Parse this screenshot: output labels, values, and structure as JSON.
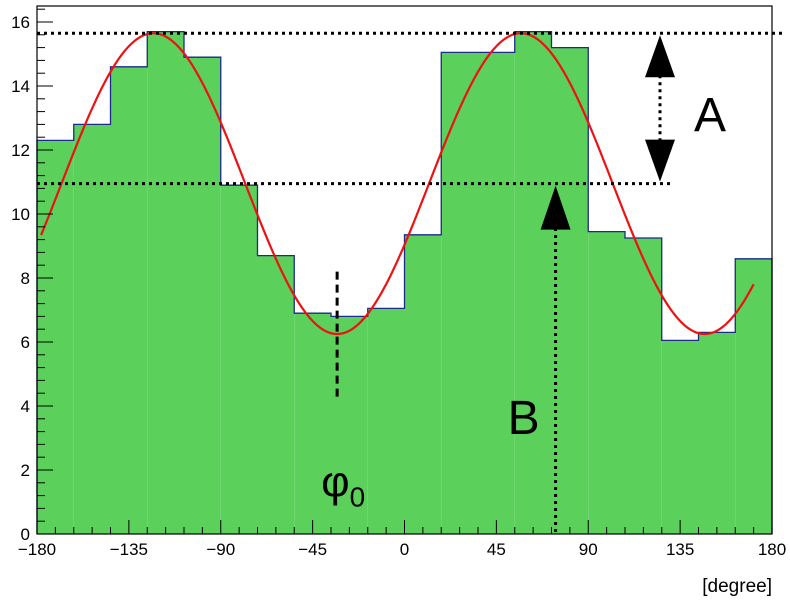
{
  "chart_data": {
    "type": "bar",
    "title": "",
    "xlabel": "[degree]",
    "ylabel": "",
    "xlim": [
      -180,
      180
    ],
    "ylim": [
      0,
      16.5
    ],
    "grid": false,
    "x_ticks": [
      -180,
      -135,
      -90,
      -45,
      0,
      45,
      90,
      135,
      180
    ],
    "x_tick_labels": [
      "−180",
      "−135",
      "−90",
      "−45",
      "0",
      "45",
      "90",
      "135",
      "180"
    ],
    "y_ticks": [
      0,
      2,
      4,
      6,
      8,
      10,
      12,
      14,
      16
    ],
    "y_tick_labels": [
      "0",
      "2",
      "4",
      "6",
      "8",
      "10",
      "12",
      "14",
      "16"
    ],
    "histogram": {
      "bin_edges": [
        -180,
        -162,
        -144,
        -126,
        -108,
        -90,
        -72,
        -54,
        -36,
        -18,
        0,
        18,
        36,
        54,
        72,
        90,
        108,
        126,
        144,
        162,
        180
      ],
      "values": [
        12.3,
        12.8,
        14.6,
        15.7,
        14.9,
        10.9,
        8.7,
        6.9,
        6.8,
        7.05,
        9.35,
        15.05,
        15.05,
        15.7,
        15.2,
        9.45,
        9.25,
        6.05,
        6.3,
        8.6
      ],
      "fill_color": "#5bd05b",
      "line_color": "#1c2a8a"
    },
    "fit": {
      "type": "sine",
      "A": 4.7,
      "B": 10.95,
      "period": 180,
      "phi0": -33,
      "color": "#ee1111"
    },
    "reference_lines": {
      "upper": 15.65,
      "lower": 10.95
    },
    "annotations": {
      "amplitude_label": "A",
      "offset_label": "B",
      "phase_label": "φ",
      "phase_subscript": "0",
      "offset_arrow_x": 74,
      "phase_marker_x": -33,
      "phase_marker_y_range": [
        4.2,
        8.2
      ]
    },
    "colors": {
      "axis": "#000000",
      "annotation": "#000000"
    }
  }
}
